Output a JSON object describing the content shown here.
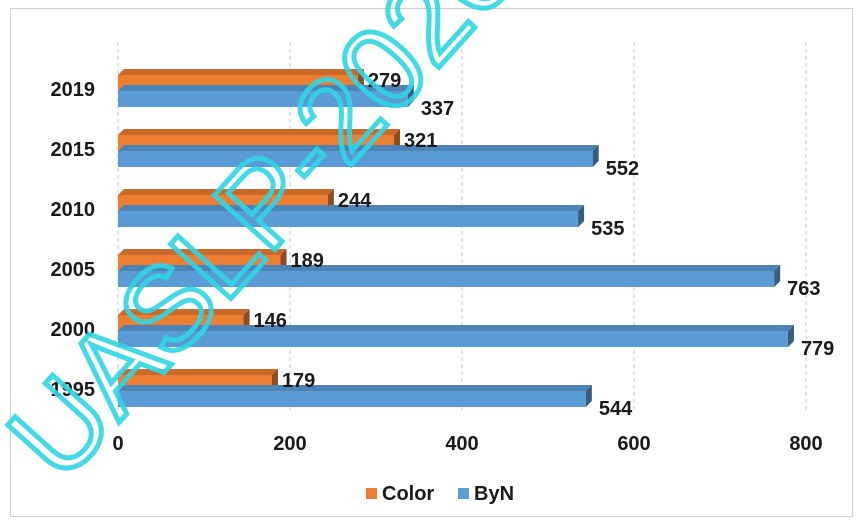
{
  "chart_data": {
    "type": "bar",
    "orientation": "horizontal",
    "categories": [
      "1995",
      "2000",
      "2005",
      "2010",
      "2015",
      "2019"
    ],
    "series": [
      {
        "name": "Color",
        "values": [
          179,
          146,
          189,
          244,
          321,
          279
        ],
        "color": "#ed7d31"
      },
      {
        "name": "ByN",
        "values": [
          544,
          779,
          763,
          535,
          552,
          337
        ],
        "color": "#5b9bd5"
      }
    ],
    "xlim": [
      0,
      800
    ],
    "xticks": [
      "0",
      "200",
      "400",
      "600",
      "800"
    ],
    "grid": "vertical-dashed",
    "legend": "bottom",
    "data_labels": true,
    "style": "3d-bar"
  },
  "watermark": {
    "text": "UASLP-2020"
  }
}
